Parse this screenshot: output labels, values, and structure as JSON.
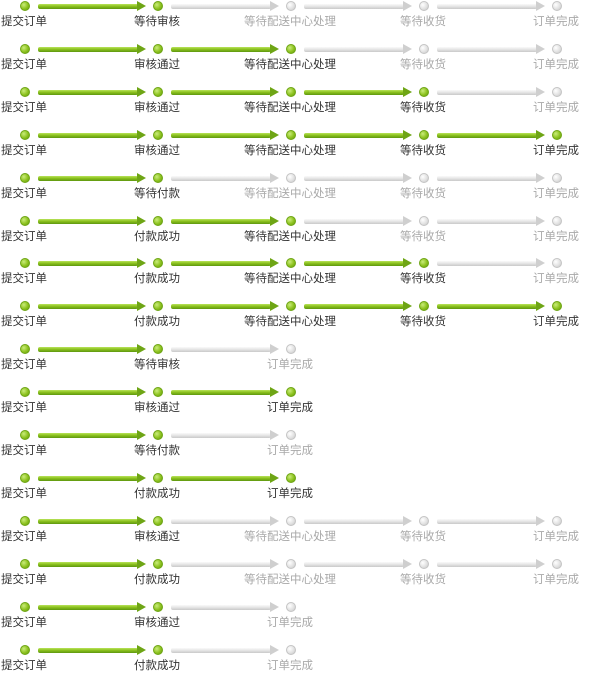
{
  "colors": {
    "active_dot": "#8dc21f",
    "active_arrow": "#8cc21e",
    "inactive_dot": "#d9d9d9",
    "active_text": "#333333",
    "inactive_text": "#a9a9a9"
  },
  "icons": {
    "step_marker": "circle-dot-icon",
    "connector": "arrow-right-icon"
  },
  "flows": [
    {
      "steps": [
        {
          "label": "提交订单",
          "state": "done"
        },
        {
          "label": "等待审核",
          "state": "done"
        },
        {
          "label": "等待配送中心处理",
          "state": "pending"
        },
        {
          "label": "等待收货",
          "state": "pending"
        },
        {
          "label": "订单完成",
          "state": "pending"
        }
      ]
    },
    {
      "steps": [
        {
          "label": "提交订单",
          "state": "done"
        },
        {
          "label": "审核通过",
          "state": "done"
        },
        {
          "label": "等待配送中心处理",
          "state": "done"
        },
        {
          "label": "等待收货",
          "state": "pending"
        },
        {
          "label": "订单完成",
          "state": "pending"
        }
      ]
    },
    {
      "steps": [
        {
          "label": "提交订单",
          "state": "done"
        },
        {
          "label": "审核通过",
          "state": "done"
        },
        {
          "label": "等待配送中心处理",
          "state": "done"
        },
        {
          "label": "等待收货",
          "state": "done"
        },
        {
          "label": "订单完成",
          "state": "pending"
        }
      ]
    },
    {
      "steps": [
        {
          "label": "提交订单",
          "state": "done"
        },
        {
          "label": "审核通过",
          "state": "done"
        },
        {
          "label": "等待配送中心处理",
          "state": "done"
        },
        {
          "label": "等待收货",
          "state": "done"
        },
        {
          "label": "订单完成",
          "state": "done"
        }
      ]
    },
    {
      "steps": [
        {
          "label": "提交订单",
          "state": "done"
        },
        {
          "label": "等待付款",
          "state": "done"
        },
        {
          "label": "等待配送中心处理",
          "state": "pending"
        },
        {
          "label": "等待收货",
          "state": "pending"
        },
        {
          "label": "订单完成",
          "state": "pending"
        }
      ]
    },
    {
      "steps": [
        {
          "label": "提交订单",
          "state": "done"
        },
        {
          "label": "付款成功",
          "state": "done"
        },
        {
          "label": "等待配送中心处理",
          "state": "done"
        },
        {
          "label": "等待收货",
          "state": "pending"
        },
        {
          "label": "订单完成",
          "state": "pending"
        }
      ]
    },
    {
      "steps": [
        {
          "label": "提交订单",
          "state": "done"
        },
        {
          "label": "付款成功",
          "state": "done"
        },
        {
          "label": "等待配送中心处理",
          "state": "done"
        },
        {
          "label": "等待收货",
          "state": "done"
        },
        {
          "label": "订单完成",
          "state": "pending"
        }
      ]
    },
    {
      "steps": [
        {
          "label": "提交订单",
          "state": "done"
        },
        {
          "label": "付款成功",
          "state": "done"
        },
        {
          "label": "等待配送中心处理",
          "state": "done"
        },
        {
          "label": "等待收货",
          "state": "done"
        },
        {
          "label": "订单完成",
          "state": "done"
        }
      ]
    },
    {
      "steps": [
        {
          "label": "提交订单",
          "state": "done"
        },
        {
          "label": "等待审核",
          "state": "done"
        },
        {
          "label": "订单完成",
          "state": "pending"
        }
      ]
    },
    {
      "steps": [
        {
          "label": "提交订单",
          "state": "done"
        },
        {
          "label": "审核通过",
          "state": "done"
        },
        {
          "label": "订单完成",
          "state": "done"
        }
      ]
    },
    {
      "steps": [
        {
          "label": "提交订单",
          "state": "done"
        },
        {
          "label": "等待付款",
          "state": "done"
        },
        {
          "label": "订单完成",
          "state": "pending"
        }
      ]
    },
    {
      "steps": [
        {
          "label": "提交订单",
          "state": "done"
        },
        {
          "label": "付款成功",
          "state": "done"
        },
        {
          "label": "订单完成",
          "state": "done"
        }
      ]
    },
    {
      "steps": [
        {
          "label": "提交订单",
          "state": "done"
        },
        {
          "label": "审核通过",
          "state": "done"
        },
        {
          "label": "等待配送中心处理",
          "state": "pending"
        },
        {
          "label": "等待收货",
          "state": "pending"
        },
        {
          "label": "订单完成",
          "state": "pending"
        }
      ]
    },
    {
      "steps": [
        {
          "label": "提交订单",
          "state": "done"
        },
        {
          "label": "付款成功",
          "state": "done"
        },
        {
          "label": "等待配送中心处理",
          "state": "pending"
        },
        {
          "label": "等待收货",
          "state": "pending"
        },
        {
          "label": "订单完成",
          "state": "pending"
        }
      ]
    },
    {
      "steps": [
        {
          "label": "提交订单",
          "state": "done"
        },
        {
          "label": "审核通过",
          "state": "done"
        },
        {
          "label": "订单完成",
          "state": "pending"
        }
      ]
    },
    {
      "steps": [
        {
          "label": "提交订单",
          "state": "done"
        },
        {
          "label": "付款成功",
          "state": "done"
        },
        {
          "label": "订单完成",
          "state": "pending"
        }
      ]
    }
  ]
}
